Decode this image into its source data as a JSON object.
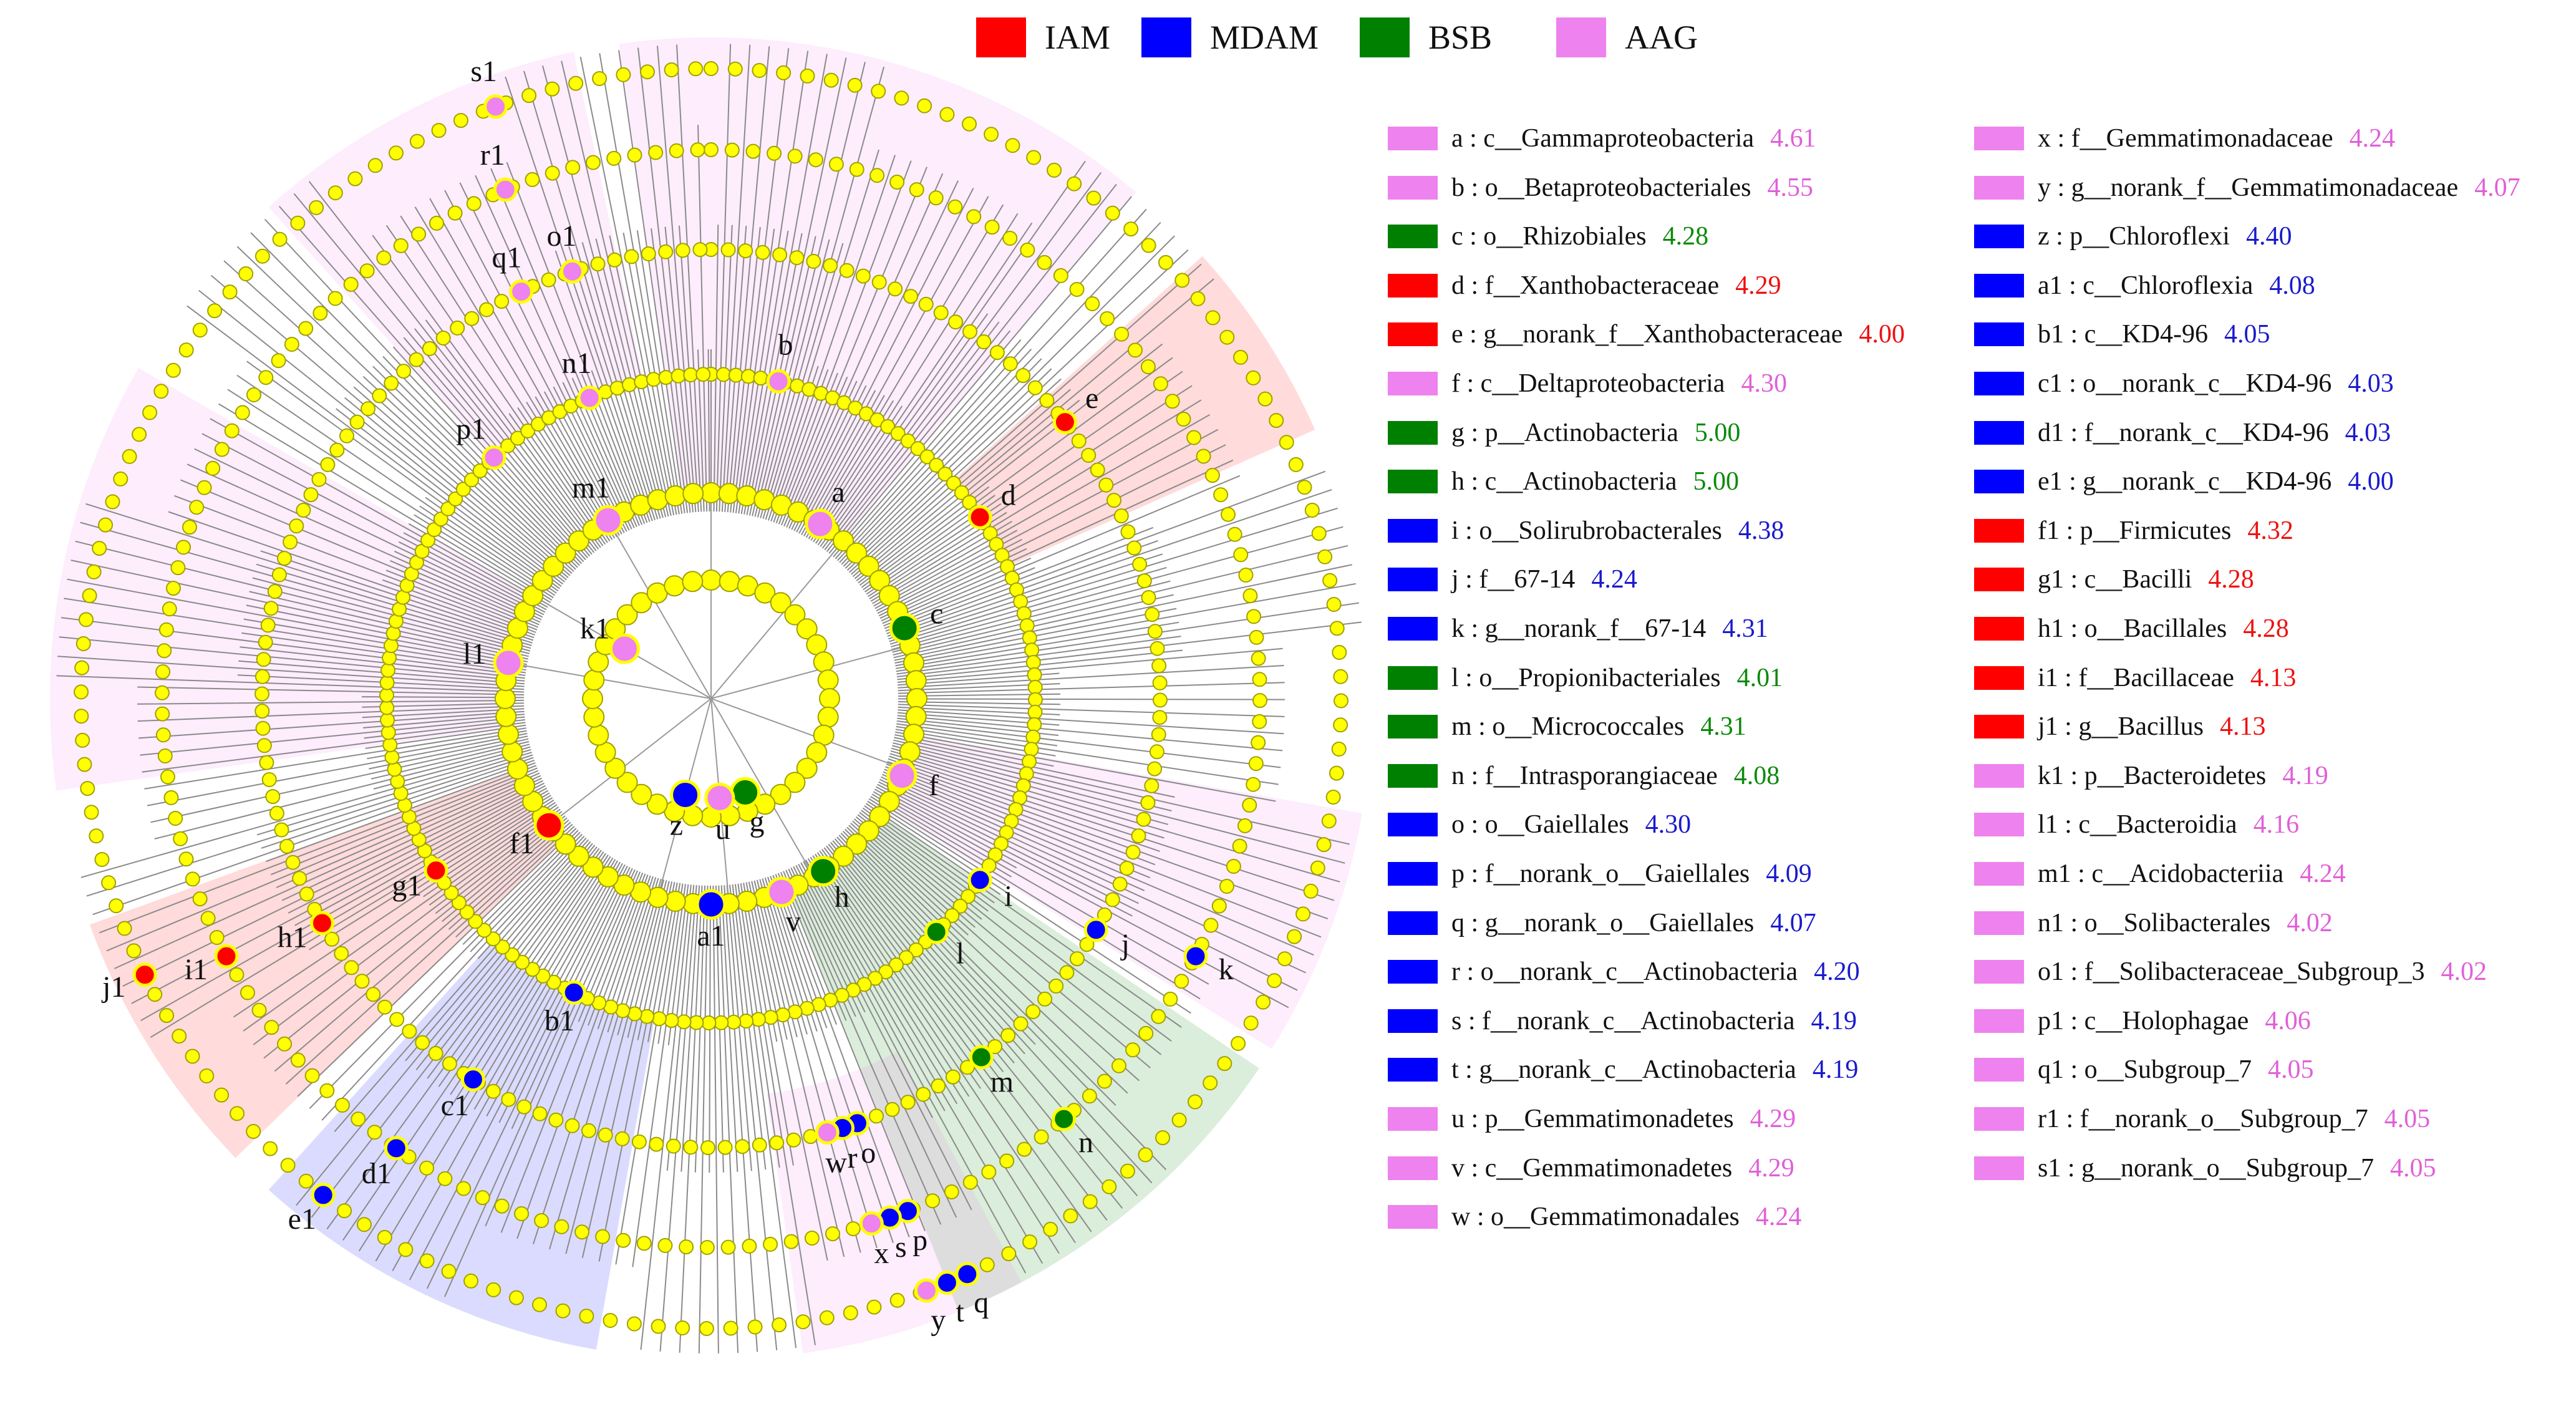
{
  "groups": [
    {
      "name": "IAM",
      "color": "#ff0000"
    },
    {
      "name": "MDAM",
      "color": "#0000ff"
    },
    {
      "name": "BSB",
      "color": "#008000"
    },
    {
      "name": "AAG",
      "color": "#ee82ee"
    }
  ],
  "taxa": [
    {
      "id": "a",
      "label": "a : c__Gammaproteobacteria",
      "lda": "4.61",
      "group": "AAG"
    },
    {
      "id": "b",
      "label": "b : o__Betaproteobacteriales",
      "lda": "4.55",
      "group": "AAG"
    },
    {
      "id": "c",
      "label": "c : o__Rhizobiales",
      "lda": "4.28",
      "group": "BSB"
    },
    {
      "id": "d",
      "label": "d : f__Xanthobacteraceae",
      "lda": "4.29",
      "group": "IAM"
    },
    {
      "id": "e",
      "label": "e : g__norank_f__Xanthobacteraceae",
      "lda": "4.00",
      "group": "IAM"
    },
    {
      "id": "f",
      "label": "f : c__Deltaproteobacteria",
      "lda": "4.30",
      "group": "AAG"
    },
    {
      "id": "g",
      "label": "g : p__Actinobacteria",
      "lda": "5.00",
      "group": "BSB"
    },
    {
      "id": "h",
      "label": "h : c__Actinobacteria",
      "lda": "5.00",
      "group": "BSB"
    },
    {
      "id": "i",
      "label": "i : o__Solirubrobacterales",
      "lda": "4.38",
      "group": "MDAM"
    },
    {
      "id": "j",
      "label": "j : f__67-14",
      "lda": "4.24",
      "group": "MDAM"
    },
    {
      "id": "k",
      "label": "k : g__norank_f__67-14",
      "lda": "4.31",
      "group": "MDAM"
    },
    {
      "id": "l",
      "label": "l : o__Propionibacteriales",
      "lda": "4.01",
      "group": "BSB"
    },
    {
      "id": "m",
      "label": "m : o__Micrococcales",
      "lda": "4.31",
      "group": "BSB"
    },
    {
      "id": "n",
      "label": "n : f__Intrasporangiaceae",
      "lda": "4.08",
      "group": "BSB"
    },
    {
      "id": "o",
      "label": "o : o__Gaiellales",
      "lda": "4.30",
      "group": "MDAM"
    },
    {
      "id": "p",
      "label": "p : f__norank_o__Gaiellales",
      "lda": "4.09",
      "group": "MDAM"
    },
    {
      "id": "q",
      "label": "q : g__norank_o__Gaiellales",
      "lda": "4.07",
      "group": "MDAM"
    },
    {
      "id": "r",
      "label": "r : o__norank_c__Actinobacteria",
      "lda": "4.20",
      "group": "MDAM"
    },
    {
      "id": "s",
      "label": "s : f__norank_c__Actinobacteria",
      "lda": "4.19",
      "group": "MDAM"
    },
    {
      "id": "t",
      "label": "t : g__norank_c__Actinobacteria",
      "lda": "4.19",
      "group": "MDAM"
    },
    {
      "id": "u",
      "label": "u : p__Gemmatimonadetes",
      "lda": "4.29",
      "group": "AAG"
    },
    {
      "id": "v",
      "label": "v : c__Gemmatimonadetes",
      "lda": "4.29",
      "group": "AAG"
    },
    {
      "id": "w",
      "label": "w : o__Gemmatimonadales",
      "lda": "4.24",
      "group": "AAG"
    },
    {
      "id": "x",
      "label": "x : f__Gemmatimonadaceae",
      "lda": "4.24",
      "group": "AAG"
    },
    {
      "id": "y",
      "label": "y : g__norank_f__Gemmatimonadaceae",
      "lda": "4.07",
      "group": "AAG"
    },
    {
      "id": "z",
      "label": "z : p__Chloroflexi",
      "lda": "4.40",
      "group": "MDAM"
    },
    {
      "id": "a1",
      "label": "a1 : c__Chloroflexia",
      "lda": "4.08",
      "group": "MDAM"
    },
    {
      "id": "b1",
      "label": "b1 : c__KD4-96",
      "lda": "4.05",
      "group": "MDAM"
    },
    {
      "id": "c1",
      "label": "c1 : o__norank_c__KD4-96",
      "lda": "4.03",
      "group": "MDAM"
    },
    {
      "id": "d1",
      "label": "d1 : f__norank_c__KD4-96",
      "lda": "4.03",
      "group": "MDAM"
    },
    {
      "id": "e1",
      "label": "e1 : g__norank_c__KD4-96",
      "lda": "4.00",
      "group": "MDAM"
    },
    {
      "id": "f1",
      "label": "f1 : p__Firmicutes",
      "lda": "4.32",
      "group": "IAM"
    },
    {
      "id": "g1",
      "label": "g1 : c__Bacilli",
      "lda": "4.28",
      "group": "IAM"
    },
    {
      "id": "h1",
      "label": "h1 : o__Bacillales",
      "lda": "4.28",
      "group": "IAM"
    },
    {
      "id": "i1",
      "label": "i1 : f__Bacillaceae",
      "lda": "4.13",
      "group": "IAM"
    },
    {
      "id": "j1",
      "label": "j1 : g__Bacillus",
      "lda": "4.13",
      "group": "IAM"
    },
    {
      "id": "k1",
      "label": "k1 : p__Bacteroidetes",
      "lda": "4.19",
      "group": "AAG"
    },
    {
      "id": "l1",
      "label": "l1 : c__Bacteroidia",
      "lda": "4.16",
      "group": "AAG"
    },
    {
      "id": "m1",
      "label": "m1 : c__Acidobacteriia",
      "lda": "4.24",
      "group": "AAG"
    },
    {
      "id": "n1",
      "label": "n1 : o__Solibacterales",
      "lda": "4.02",
      "group": "AAG"
    },
    {
      "id": "o1",
      "label": "o1 : f__Solibacteraceae_Subgroup_3",
      "lda": "4.02",
      "group": "AAG"
    },
    {
      "id": "p1",
      "label": "p1 : c__Holophagae",
      "lda": "4.06",
      "group": "AAG"
    },
    {
      "id": "q1",
      "label": "q1 : o__Subgroup_7",
      "lda": "4.05",
      "group": "AAG"
    },
    {
      "id": "r1",
      "label": "r1 : f__norank_o__Subgroup_7",
      "lda": "4.05",
      "group": "AAG"
    },
    {
      "id": "s1",
      "label": "s1 : g__norank_o__Subgroup_7",
      "lda": "4.05",
      "group": "AAG"
    }
  ]
}
